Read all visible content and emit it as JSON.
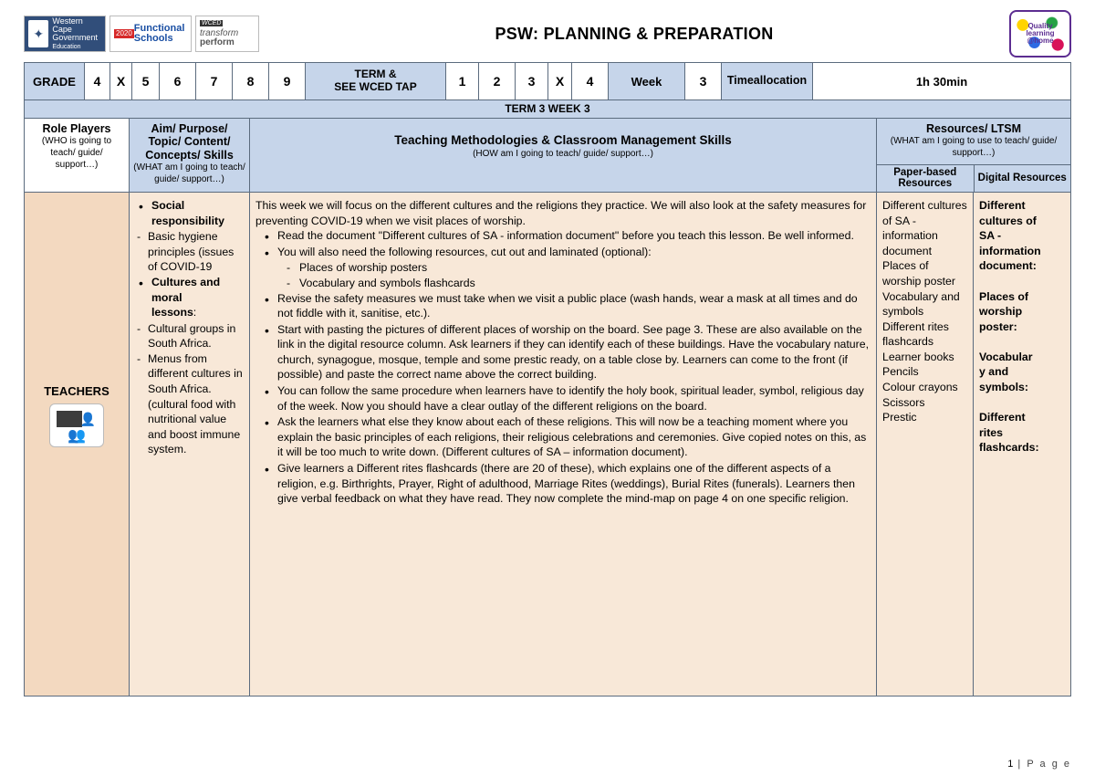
{
  "title": "PSW: PLANNING & PREPARATION",
  "logos": {
    "wc_line1": "Western Cape",
    "wc_line2": "Government",
    "wc_sub": "Education",
    "fs_year": "2020",
    "fs_line1": "Functional",
    "fs_line2": "Schools",
    "tp_wced": "WCED",
    "tp_line1": "transform",
    "tp_line2": "perform",
    "ql_line1": "Quality",
    "ql_line2": "learning",
    "ql_line3": "@home"
  },
  "strip": {
    "grade_label": "GRADE",
    "g4": "4",
    "gx1": "X",
    "g5": "5",
    "g6": "6",
    "g7": "7",
    "g8": "8",
    "g9": "9",
    "term_label_1": "TERM &",
    "term_label_2": "SEE WCED TAP",
    "t1": "1",
    "t2": "2",
    "t3": "3",
    "tx2": "X",
    "t4": "4",
    "week_label": "Week",
    "week_val": "3",
    "time_label_1": "Time",
    "time_label_2": "allocation",
    "time_val_1": "1h 30",
    "time_val_2": "min"
  },
  "termstrip": "TERM 3  WEEK 3",
  "colhdr": {
    "role_b": "Role Players",
    "role_sub": "(WHO is going to teach/ guide/ support…)",
    "aim_b1": "Aim/ Purpose/",
    "aim_b2": "Topic/ Content/",
    "aim_b3": "Concepts/ Skills",
    "aim_sub": "(WHAT am I going to teach/ guide/ support…)",
    "meth_b": "Teaching Methodologies & Classroom Management Skills",
    "meth_sub": "(HOW am I going to teach/ guide/ support…)",
    "res_b": "Resources/ LTSM",
    "res_sub": "(WHAT am I going to use to teach/ guide/ support…)",
    "res_paper": "Paper-based Resources",
    "res_dig": "Digital Resources"
  },
  "role": {
    "label": "TEACHERS"
  },
  "aim": {
    "b1a": "Social",
    "b1b": "responsibility",
    "d1": "Basic hygiene principles (issues of COVID-19",
    "b2a": "Cultures and",
    "b2b": "moral",
    "b2c": "lessons",
    "d2": "Cultural groups in South Africa.",
    "d3": "Menus from different cultures in South Africa. (cultural food with nutritional value and boost immune system."
  },
  "meth": {
    "intro": "This week we will focus on the different cultures and the religions they practice. We will also look at the safety measures for preventing COVID-19 when we visit places of worship.",
    "m1": "Read the document \"Different cultures of SA - information document\" before you teach this lesson. Be well informed.",
    "m2": "You will also need the following resources, cut out and laminated (optional):",
    "m2a": "Places of worship posters",
    "m2b": "Vocabulary and symbols flashcards",
    "m3": "Revise the safety measures we must take when we visit a public place (wash hands, wear a mask at all times and do not fiddle with it, sanitise, etc.).",
    "m4": "Start with pasting the pictures of different places of worship on the board. See page 3. These are also available on the link in the digital resource column. Ask learners if they can identify each of these buildings. Have the vocabulary nature, church, synagogue, mosque, temple and some prestic ready, on a table close by. Learners can come to the front (if possible) and paste the correct name above the correct building.",
    "m5": "You can follow the same procedure when learners have to identify the holy book, spiritual leader, symbol, religious day of the week. Now you should have a clear outlay of the different religions on the board.",
    "m6": "Ask the learners what else they know about each of these religions. This will now be a teaching moment where you explain the basic principles of each religions, their religious celebrations and ceremonies. Give copied notes on this, as it will be too much to write down. (Different cultures of SA – information document).",
    "m7": "Give learners a Different rites flashcards (there are 20 of these), which explains one of the different aspects of a religion, e.g. Birthrights, Prayer, Right of adulthood, Marriage Rites (weddings), Burial Rites (funerals). Learners then give verbal feedback on what they have read. They now complete the mind-map on page 4 on one specific religion."
  },
  "paper": {
    "p1": "Different cultures of SA - information document",
    "p2": "Places of worship poster",
    "p3": "Vocabulary and symbols",
    "p4": "Different rites flashcards",
    "p5": "Learner books",
    "p6": "Pencils",
    "p7": "Colour crayons",
    "p8": "Scissors",
    "p9": "Prestic"
  },
  "dig": {
    "d1a": "Different",
    "d1b": "cultures of",
    "d1c": "SA -",
    "d1d": "information",
    "d1e": "document:",
    "d2a": "Places of",
    "d2b": "worship",
    "d2c": "poster:",
    "d3a": "Vocabular",
    "d3b": "y and",
    "d3c": "symbols:",
    "d4a": "Different",
    "d4b": "rites",
    "d4c": "flashcards:"
  },
  "footer": {
    "num": "1",
    "label": "P a g e"
  }
}
